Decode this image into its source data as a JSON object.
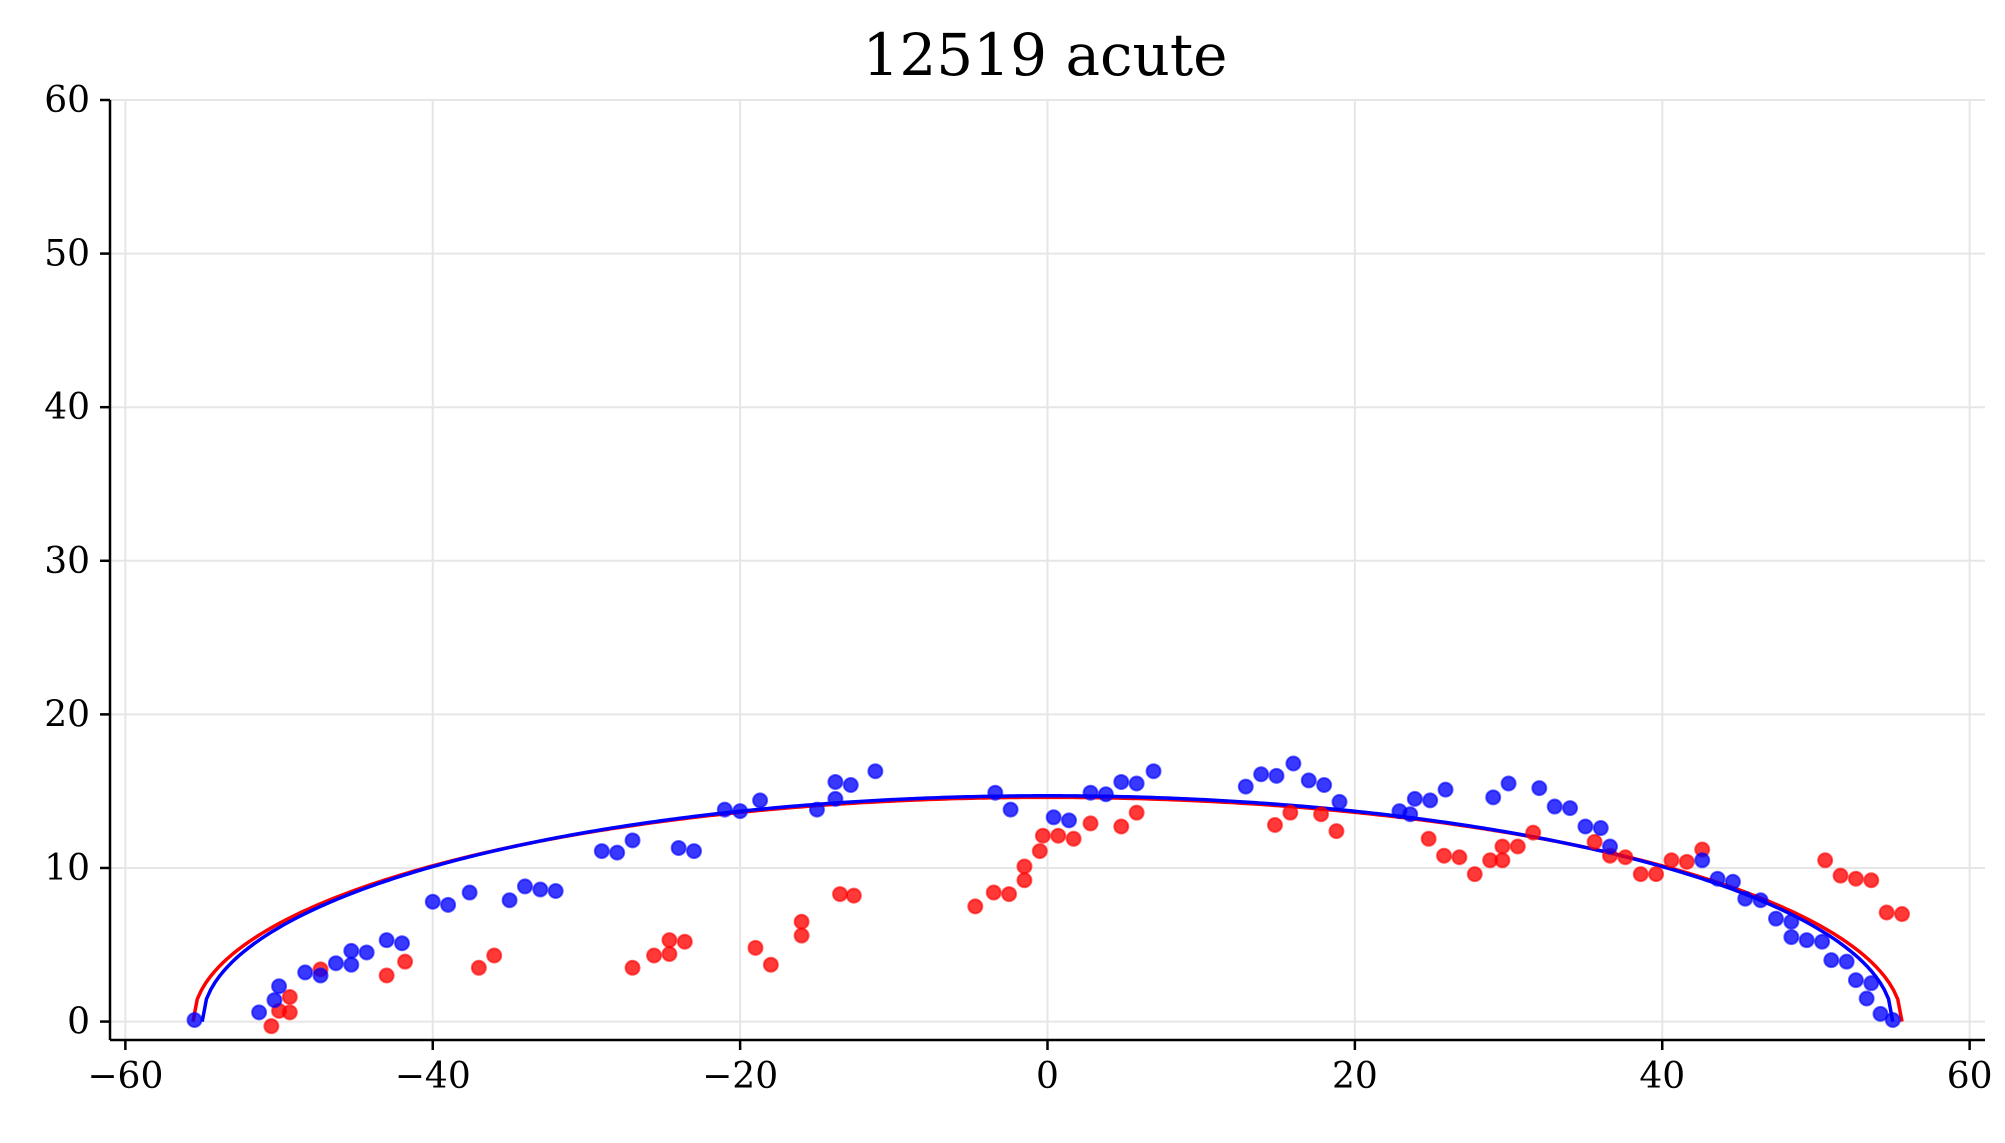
{
  "chart_data": {
    "type": "scatter",
    "title": "12519 acute",
    "xlabel": "",
    "ylabel": "",
    "xlim": [
      -61,
      61
    ],
    "ylim": [
      -1.2,
      60
    ],
    "xticks": [
      -60,
      -40,
      -20,
      0,
      20,
      40,
      60
    ],
    "yticks": [
      0,
      10,
      20,
      30,
      40,
      50,
      60
    ],
    "xtick_labels": [
      "−60",
      "−40",
      "−20",
      "0",
      "20",
      "40",
      "60"
    ],
    "ytick_labels": [
      "0",
      "10",
      "20",
      "30",
      "40",
      "50",
      "60"
    ],
    "grid": true,
    "colors": {
      "red": "#ff0000",
      "blue": "#0000ff",
      "grid": "#e6e6e6",
      "axis": "#000000"
    },
    "series": [
      {
        "kind": "points",
        "color": "#ff0000",
        "points": [
          [
            -50.5,
            -0.3
          ],
          [
            -50,
            0.7
          ],
          [
            -49.3,
            0.6
          ],
          [
            -49.3,
            1.6
          ],
          [
            -47.3,
            3.4
          ],
          [
            -43,
            3
          ],
          [
            -41.8,
            3.9
          ],
          [
            -37,
            3.5
          ],
          [
            -36,
            4.3
          ],
          [
            -27,
            3.5
          ],
          [
            -25.6,
            4.3
          ],
          [
            -24.6,
            4.4
          ],
          [
            -24.6,
            5.3
          ],
          [
            -23.6,
            5.2
          ],
          [
            -19,
            4.8
          ],
          [
            -18,
            3.7
          ],
          [
            -16,
            5.6
          ],
          [
            -16,
            6.5
          ],
          [
            -13.5,
            8.3
          ],
          [
            -12.6,
            8.2
          ],
          [
            -4.7,
            7.5
          ],
          [
            -3.5,
            8.4
          ],
          [
            -2.5,
            8.3
          ],
          [
            -1.5,
            9.2
          ],
          [
            -1.5,
            10.1
          ],
          [
            -0.5,
            11.1
          ],
          [
            -0.3,
            12.1
          ],
          [
            0.7,
            12.1
          ],
          [
            1.7,
            11.9
          ],
          [
            2.8,
            12.9
          ],
          [
            4.8,
            12.7
          ],
          [
            5.8,
            13.6
          ],
          [
            14.8,
            12.8
          ],
          [
            15.8,
            13.6
          ],
          [
            17.8,
            13.5
          ],
          [
            18.8,
            12.4
          ],
          [
            24.8,
            11.9
          ],
          [
            25.8,
            10.8
          ],
          [
            26.8,
            10.7
          ],
          [
            27.8,
            9.6
          ],
          [
            28.8,
            10.5
          ],
          [
            29.6,
            10.5
          ],
          [
            29.6,
            11.4
          ],
          [
            30.6,
            11.4
          ],
          [
            31.6,
            12.3
          ],
          [
            35.6,
            11.7
          ],
          [
            36.6,
            10.8
          ],
          [
            37.6,
            10.7
          ],
          [
            38.6,
            9.6
          ],
          [
            39.6,
            9.6
          ],
          [
            40.6,
            10.5
          ],
          [
            41.6,
            10.4
          ],
          [
            42.6,
            11.2
          ],
          [
            50.6,
            10.5
          ],
          [
            51.6,
            9.5
          ],
          [
            52.6,
            9.3
          ],
          [
            53.6,
            9.2
          ],
          [
            54.6,
            7.1
          ],
          [
            55.6,
            7.0
          ]
        ]
      },
      {
        "kind": "points",
        "color": "#0000ff",
        "points": [
          [
            -55.5,
            0.1
          ],
          [
            -51.3,
            0.6
          ],
          [
            -50.3,
            1.4
          ],
          [
            -50,
            2.3
          ],
          [
            -48.3,
            3.2
          ],
          [
            -47.3,
            3
          ],
          [
            -46.3,
            3.8
          ],
          [
            -45.3,
            3.7
          ],
          [
            -45.3,
            4.6
          ],
          [
            -44.3,
            4.5
          ],
          [
            -43,
            5.3
          ],
          [
            -42,
            5.1
          ],
          [
            -40,
            7.8
          ],
          [
            -39,
            7.6
          ],
          [
            -37.6,
            8.4
          ],
          [
            -35,
            7.9
          ],
          [
            -34,
            8.8
          ],
          [
            -33,
            8.6
          ],
          [
            -32,
            8.5
          ],
          [
            -29,
            11.1
          ],
          [
            -28,
            11
          ],
          [
            -27,
            11.8
          ],
          [
            -24,
            11.3
          ],
          [
            -23,
            11.1
          ],
          [
            -21,
            13.8
          ],
          [
            -20,
            13.7
          ],
          [
            -18.7,
            14.4
          ],
          [
            -15,
            13.8
          ],
          [
            -13.8,
            14.5
          ],
          [
            -13.8,
            15.6
          ],
          [
            -12.8,
            15.4
          ],
          [
            -11.2,
            16.3
          ],
          [
            -3.4,
            14.9
          ],
          [
            -2.4,
            13.8
          ],
          [
            0.4,
            13.3
          ],
          [
            1.4,
            13.1
          ],
          [
            2.8,
            14.9
          ],
          [
            3.8,
            14.8
          ],
          [
            4.8,
            15.6
          ],
          [
            5.8,
            15.5
          ],
          [
            6.9,
            16.3
          ],
          [
            12.9,
            15.3
          ],
          [
            13.9,
            16.1
          ],
          [
            14.9,
            16
          ],
          [
            16,
            16.8
          ],
          [
            17,
            15.7
          ],
          [
            18,
            15.4
          ],
          [
            19,
            14.3
          ],
          [
            22.9,
            13.7
          ],
          [
            23.6,
            13.5
          ],
          [
            23.9,
            14.5
          ],
          [
            24.9,
            14.4
          ],
          [
            25.9,
            15.1
          ],
          [
            29,
            14.6
          ],
          [
            30,
            15.5
          ],
          [
            32,
            15.2
          ],
          [
            33,
            14
          ],
          [
            34,
            13.9
          ],
          [
            35,
            12.7
          ],
          [
            36,
            12.6
          ],
          [
            36.6,
            11.4
          ],
          [
            42.6,
            10.5
          ],
          [
            43.6,
            9.3
          ],
          [
            44.6,
            9.1
          ],
          [
            45.4,
            8
          ],
          [
            46.4,
            7.9
          ],
          [
            47.4,
            6.7
          ],
          [
            48.4,
            6.5
          ],
          [
            48.4,
            5.5
          ],
          [
            49.4,
            5.3
          ],
          [
            50.4,
            5.2
          ],
          [
            51,
            4
          ],
          [
            52,
            3.9
          ],
          [
            52.6,
            2.7
          ],
          [
            53.6,
            2.5
          ],
          [
            53.3,
            1.5
          ],
          [
            54.2,
            0.5
          ],
          [
            55,
            0.1
          ]
        ]
      },
      {
        "kind": "curve",
        "color": "#ff0000",
        "shape": "semi-ellipse",
        "x_range": [
          -55.6,
          55.6
        ],
        "peak": 14.6,
        "peak_x": 0
      },
      {
        "kind": "curve",
        "color": "#0000ff",
        "shape": "semi-ellipse",
        "x_range": [
          -55.0,
          55.0
        ],
        "peak": 14.7,
        "peak_x": 0
      }
    ]
  }
}
